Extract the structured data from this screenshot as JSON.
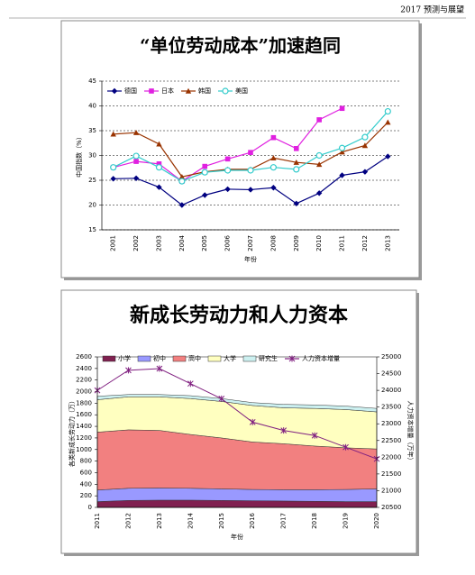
{
  "header": {
    "title": "2017 预测与展望"
  },
  "chart_data": [
    {
      "type": "line",
      "title": "“单位劳动成本”加速趋同",
      "ylabel": "中国指数（%）",
      "xlabel": "年份",
      "categories": [
        "2001",
        "2002",
        "2003",
        "2004",
        "2005",
        "2006",
        "2007",
        "2008",
        "2009",
        "2010",
        "2011",
        "2012",
        "2013"
      ],
      "ylim": [
        15,
        45
      ],
      "yticks": [
        15,
        20,
        25,
        30,
        35,
        40,
        45
      ],
      "grid": true,
      "legend": "top-left",
      "series": [
        {
          "name": "德国",
          "color": "#000080",
          "marker": "diamond",
          "values": [
            25.3,
            25.4,
            23.6,
            20.0,
            22.0,
            23.2,
            23.1,
            23.5,
            20.3,
            22.4,
            26.0,
            26.7,
            29.8
          ]
        },
        {
          "name": "日本",
          "color": "#e020e0",
          "marker": "square",
          "values": [
            27.6,
            28.8,
            28.3,
            24.8,
            27.8,
            29.3,
            30.6,
            33.6,
            31.4,
            37.2,
            39.5,
            null,
            null
          ]
        },
        {
          "name": "韩国",
          "color": "#993300",
          "marker": "triangle",
          "values": [
            34.3,
            34.6,
            32.3,
            25.7,
            26.7,
            27.2,
            27.2,
            29.5,
            28.6,
            28.2,
            30.7,
            32.0,
            36.7
          ]
        },
        {
          "name": "美国",
          "color": "#33cccc",
          "marker": "circle",
          "values": [
            27.6,
            29.9,
            27.6,
            24.8,
            26.6,
            27.0,
            27.0,
            27.6,
            27.2,
            30.0,
            31.5,
            33.7,
            38.9
          ]
        }
      ]
    },
    {
      "type": "area",
      "title": "新成长劳动力和人力资本",
      "ylabel": "各类新成长劳动力（万）",
      "y2label": "人力资本增量（万年）",
      "xlabel": "年份",
      "categories": [
        "2011",
        "2012",
        "2013",
        "2014",
        "2015",
        "2016",
        "2017",
        "2018",
        "2019",
        "2020"
      ],
      "ylim": [
        0,
        2600
      ],
      "yticks": [
        0,
        200,
        400,
        600,
        800,
        1000,
        1200,
        1400,
        1600,
        1800,
        2000,
        2200,
        2400,
        2600
      ],
      "y2lim": [
        20500,
        25000
      ],
      "y2ticks": [
        20500,
        21000,
        21500,
        22000,
        22500,
        23000,
        23500,
        24000,
        24500,
        25000
      ],
      "grid": false,
      "legend": "top",
      "series": [
        {
          "name": "小学",
          "color": "#802050",
          "values": [
            100,
            120,
            125,
            125,
            120,
            115,
            110,
            105,
            100,
            100
          ]
        },
        {
          "name": "初中",
          "color": "#9999ff",
          "values": [
            200,
            210,
            210,
            205,
            200,
            195,
            195,
            200,
            210,
            220
          ]
        },
        {
          "name": "高中",
          "color": "#f28080",
          "values": [
            1000,
            1010,
            995,
            930,
            880,
            820,
            795,
            755,
            720,
            690
          ]
        },
        {
          "name": "大学",
          "color": "#ffffc0",
          "values": [
            560,
            570,
            580,
            620,
            630,
            630,
            620,
            650,
            660,
            640
          ]
        },
        {
          "name": "研究生",
          "color": "#ccf0f0",
          "values": [
            60,
            40,
            40,
            50,
            50,
            50,
            60,
            60,
            60,
            60
          ]
        },
        {
          "name": "人力资本增量",
          "color": "#802080",
          "axis": "y2",
          "marker": "star",
          "values": [
            24000,
            24600,
            24650,
            24200,
            23750,
            23050,
            22800,
            22650,
            22300,
            21950
          ]
        }
      ]
    }
  ]
}
